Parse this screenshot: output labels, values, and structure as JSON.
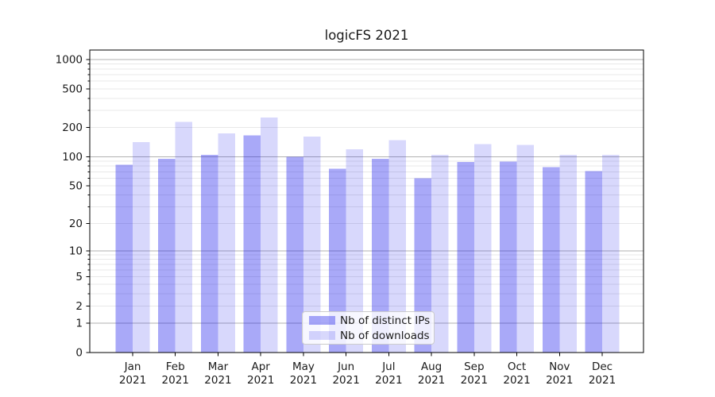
{
  "chart_data": {
    "type": "bar",
    "title": "logicFS 2021",
    "categories": [
      "Jan 2021",
      "Feb 2021",
      "Mar 2021",
      "Apr 2021",
      "May 2021",
      "Jun 2021",
      "Jul 2021",
      "Aug 2021",
      "Sep 2021",
      "Oct 2021",
      "Nov 2021",
      "Dec 2021"
    ],
    "series": [
      {
        "name": "Nb of distinct IPs",
        "color_hex": "#aaaaf6",
        "fill_rgba": "rgba(10,10,235,0.35)",
        "values": [
          83,
          95,
          105,
          167,
          100,
          75,
          95,
          60,
          88,
          89,
          78,
          71
        ]
      },
      {
        "name": "Nb of downloads",
        "color_hex": "#d9d9fa",
        "fill_rgba": "rgba(10,10,235,0.16)",
        "values": [
          142,
          228,
          174,
          253,
          161,
          119,
          148,
          105,
          135,
          132,
          105,
          105
        ]
      }
    ],
    "xlabel": "",
    "ylabel": "",
    "yscale": "log1p",
    "ylim": [
      0,
      1250
    ],
    "y_ticks": [
      1000,
      500,
      200,
      100,
      50,
      20,
      10,
      5,
      2,
      1,
      0
    ],
    "grid": {
      "enabled": true,
      "major_values": [
        1,
        10,
        100,
        1000
      ],
      "major_color": "#b2b2b2",
      "minor_color": "#e8e8e8"
    },
    "axis_color": "#000000",
    "text_color": "#1a1a1a",
    "legend": {
      "location": "lower center",
      "background": "rgba(255,255,255,0.8)",
      "border_color": "#cccccc"
    }
  }
}
